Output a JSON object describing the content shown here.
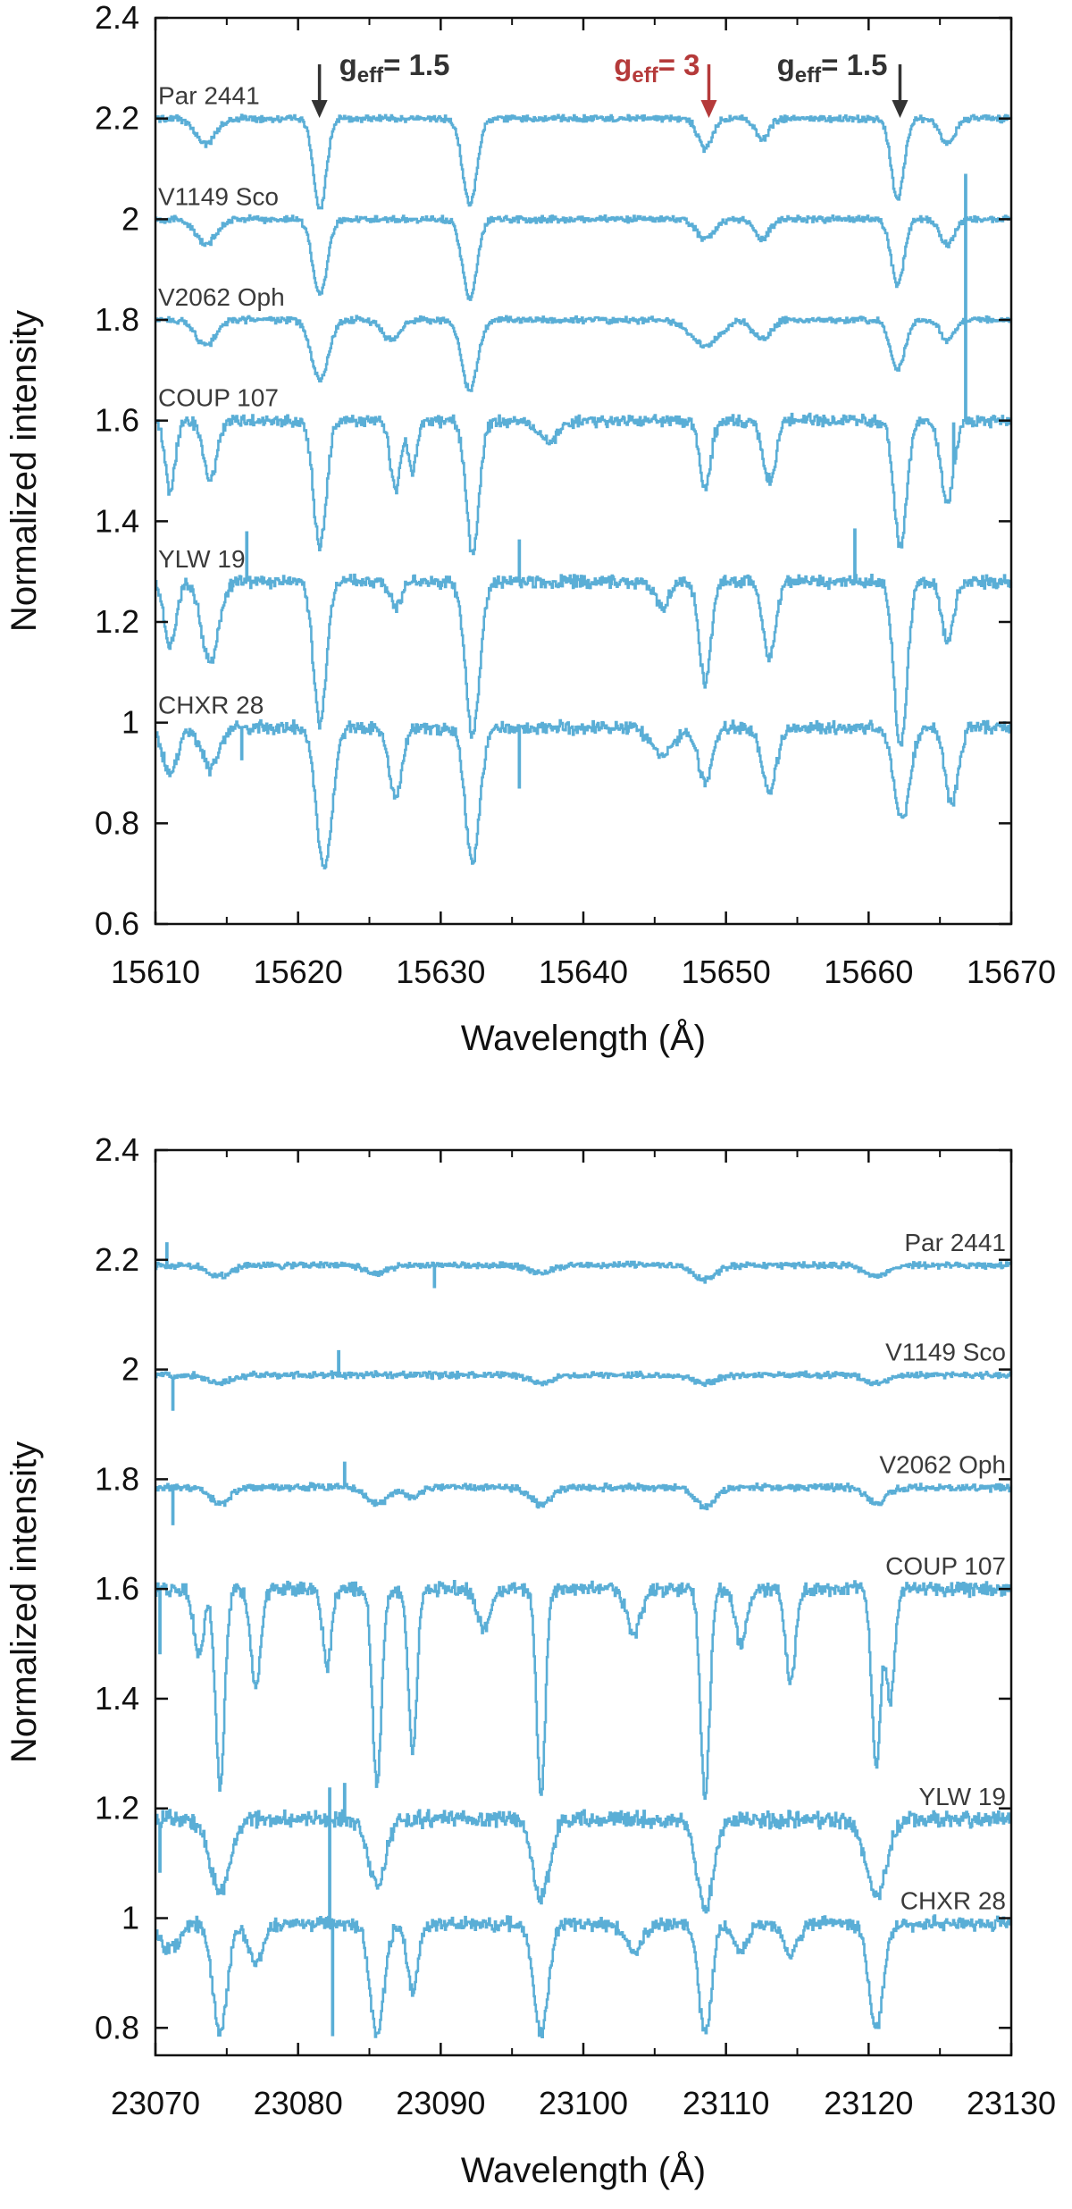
{
  "colors": {
    "spectrum": "#5aaed6",
    "axis": "#111111",
    "annotation_dark": "#333333",
    "annotation_red": "#b53a3a",
    "label": "#3a3a3a"
  },
  "chart_data": [
    {
      "type": "line",
      "xlabel": "Wavelength (Å)",
      "ylabel": "Normalized intensity",
      "xlim": [
        15610,
        15670
      ],
      "ylim": [
        0.6,
        2.4
      ],
      "xticks": [
        "15610",
        "15620",
        "15630",
        "15640",
        "15650",
        "15660",
        "15670"
      ],
      "yticks": [
        "0.6",
        "0.8",
        "1",
        "1.2",
        "1.4",
        "1.6",
        "1.8",
        "2",
        "2.2",
        "2.4"
      ],
      "series_labels_side": "left",
      "series": [
        {
          "name": "Par 2441",
          "baseline": 2.2,
          "noise": 0.008,
          "lines": [
            [
              15613.5,
              0.05,
              0.7
            ],
            [
              15621.5,
              0.18,
              0.45
            ],
            [
              15632,
              0.17,
              0.5
            ],
            [
              15648.5,
              0.06,
              0.5
            ],
            [
              15652.5,
              0.04,
              0.5
            ],
            [
              15662,
              0.16,
              0.45
            ],
            [
              15665.5,
              0.05,
              0.5
            ]
          ]
        },
        {
          "name": "V1149 Sco",
          "baseline": 2.0,
          "noise": 0.008,
          "lines": [
            [
              15613.5,
              0.05,
              0.7
            ],
            [
              15621.5,
              0.15,
              0.5
            ],
            [
              15632,
              0.16,
              0.5
            ],
            [
              15648.5,
              0.04,
              0.6
            ],
            [
              15652.5,
              0.04,
              0.5
            ],
            [
              15662,
              0.13,
              0.45
            ],
            [
              15665.5,
              0.05,
              0.5
            ]
          ]
        },
        {
          "name": "V2062 Oph",
          "baseline": 1.8,
          "noise": 0.008,
          "lines": [
            [
              15613.5,
              0.05,
              0.7
            ],
            [
              15621.5,
              0.12,
              0.6
            ],
            [
              15626.5,
              0.04,
              0.6
            ],
            [
              15632,
              0.14,
              0.55
            ],
            [
              15648.5,
              0.05,
              1.0
            ],
            [
              15652.5,
              0.04,
              0.6
            ],
            [
              15662,
              0.1,
              0.5
            ],
            [
              15665.5,
              0.04,
              0.5
            ]
          ]
        },
        {
          "name": "COUP 107",
          "baseline": 1.6,
          "noise": 0.015,
          "lines": [
            [
              15611,
              0.14,
              0.35
            ],
            [
              15613.8,
              0.12,
              0.45
            ],
            [
              15621.5,
              0.25,
              0.45
            ],
            [
              15626.8,
              0.14,
              0.35
            ],
            [
              15628,
              0.1,
              0.3
            ],
            [
              15632.2,
              0.26,
              0.45
            ],
            [
              15637.5,
              0.04,
              0.8
            ],
            [
              15648.5,
              0.13,
              0.4
            ],
            [
              15653,
              0.12,
              0.45
            ],
            [
              15662.2,
              0.25,
              0.45
            ],
            [
              15665.5,
              0.16,
              0.45
            ]
          ],
          "spikes": [
            [
              15665.9,
              0.1
            ],
            [
              15666.8,
              0.5
            ]
          ]
        },
        {
          "name": "YLW 19",
          "baseline": 1.28,
          "noise": 0.015,
          "lines": [
            [
              15611,
              0.13,
              0.4
            ],
            [
              15613.8,
              0.16,
              0.6
            ],
            [
              15621.5,
              0.28,
              0.45
            ],
            [
              15626.8,
              0.05,
              0.4
            ],
            [
              15632.2,
              0.3,
              0.5
            ],
            [
              15645.5,
              0.05,
              0.5
            ],
            [
              15648.5,
              0.2,
              0.4
            ],
            [
              15653,
              0.15,
              0.45
            ],
            [
              15662.2,
              0.33,
              0.45
            ],
            [
              15665.5,
              0.12,
              0.4
            ]
          ],
          "spikes": [
            [
              15616.4,
              0.1
            ],
            [
              15635.5,
              0.08
            ],
            [
              15659,
              0.1
            ]
          ]
        },
        {
          "name": "CHXR 28",
          "baseline": 0.99,
          "noise": 0.015,
          "lines": [
            [
              15611,
              0.09,
              0.5
            ],
            [
              15613.8,
              0.08,
              0.6
            ],
            [
              15621.8,
              0.28,
              0.55
            ],
            [
              15626.8,
              0.14,
              0.45
            ],
            [
              15632.2,
              0.27,
              0.5
            ],
            [
              15645.5,
              0.05,
              0.8
            ],
            [
              15648.5,
              0.11,
              0.5
            ],
            [
              15653,
              0.13,
              0.5
            ],
            [
              15662.3,
              0.18,
              0.55
            ],
            [
              15665.8,
              0.15,
              0.45
            ]
          ],
          "spikes": [
            [
              15635.5,
              -0.12
            ],
            [
              15616,
              -0.06
            ]
          ]
        }
      ],
      "annotations": [
        {
          "x": 15621.5,
          "main": "g",
          "sub": "eff",
          "rest": "= 1.5",
          "color": "#333333"
        },
        {
          "x": 15648.8,
          "main": "g",
          "sub": "eff",
          "rest": "= 3",
          "color": "#b53a3a"
        },
        {
          "x": 15662.2,
          "main": "g",
          "sub": "eff",
          "rest": "= 1.5",
          "color": "#333333"
        }
      ]
    },
    {
      "type": "line",
      "xlabel": "Wavelength (Å)",
      "ylabel": "Normalized intensity",
      "xlim": [
        23070,
        23130
      ],
      "ylim": [
        0.75,
        2.4
      ],
      "xticks": [
        "23070",
        "23080",
        "23090",
        "23100",
        "23110",
        "23120",
        "23130"
      ],
      "yticks": [
        "0.8",
        "1",
        "1.2",
        "1.4",
        "1.6",
        "1.8",
        "2",
        "2.2",
        "2.4"
      ],
      "series_labels_side": "right",
      "series": [
        {
          "name": "Par 2441",
          "baseline": 2.19,
          "noise": 0.007,
          "lines": [
            [
              23074.5,
              0.02,
              0.8
            ],
            [
              23085.5,
              0.015,
              0.8
            ],
            [
              23097,
              0.015,
              0.8
            ],
            [
              23108.5,
              0.025,
              0.8
            ],
            [
              23120.5,
              0.02,
              0.8
            ]
          ],
          "spikes": [
            [
              23070.8,
              0.04
            ],
            [
              23089.5,
              -0.04
            ]
          ]
        },
        {
          "name": "V1149 Sco",
          "baseline": 1.99,
          "noise": 0.007,
          "lines": [
            [
              23074.5,
              0.015,
              0.8
            ],
            [
              23097,
              0.015,
              0.8
            ],
            [
              23108.5,
              0.015,
              0.8
            ],
            [
              23120.5,
              0.015,
              0.8
            ]
          ],
          "spikes": [
            [
              23071.2,
              -0.06
            ],
            [
              23082.8,
              0.04
            ]
          ]
        },
        {
          "name": "V2062 Oph",
          "baseline": 1.785,
          "noise": 0.008,
          "lines": [
            [
              23074.5,
              0.03,
              0.7
            ],
            [
              23085.5,
              0.03,
              0.7
            ],
            [
              23088,
              0.02,
              0.5
            ],
            [
              23097,
              0.03,
              0.7
            ],
            [
              23108.5,
              0.035,
              0.7
            ],
            [
              23120.5,
              0.03,
              0.7
            ]
          ],
          "spikes": [
            [
              23071.2,
              -0.07
            ],
            [
              23083.2,
              0.05
            ]
          ]
        },
        {
          "name": "COUP 107",
          "baseline": 1.6,
          "noise": 0.015,
          "lines": [
            [
              23073,
              0.12,
              0.35
            ],
            [
              23074.5,
              0.36,
              0.32
            ],
            [
              23077,
              0.18,
              0.35
            ],
            [
              23082,
              0.14,
              0.3
            ],
            [
              23085.5,
              0.36,
              0.32
            ],
            [
              23088,
              0.3,
              0.3
            ],
            [
              23093,
              0.07,
              0.5
            ],
            [
              23097,
              0.38,
              0.3
            ],
            [
              23103.5,
              0.08,
              0.5
            ],
            [
              23108.5,
              0.38,
              0.32
            ],
            [
              23111,
              0.1,
              0.4
            ],
            [
              23114.5,
              0.17,
              0.35
            ],
            [
              23120.5,
              0.32,
              0.32
            ],
            [
              23121.5,
              0.2,
              0.3
            ]
          ],
          "spikes": [
            [
              23070.3,
              -0.12
            ]
          ]
        },
        {
          "name": "YLW 19",
          "baseline": 1.18,
          "noise": 0.018,
          "lines": [
            [
              23074.5,
              0.13,
              0.7
            ],
            [
              23085.5,
              0.12,
              0.6
            ],
            [
              23097,
              0.14,
              0.6
            ],
            [
              23108.5,
              0.16,
              0.6
            ],
            [
              23120.5,
              0.14,
              0.7
            ]
          ],
          "spikes": [
            [
              23083.2,
              0.06
            ],
            [
              23070.3,
              -0.08
            ]
          ]
        },
        {
          "name": "CHXR 28",
          "baseline": 0.99,
          "noise": 0.015,
          "lines": [
            [
              23071,
              0.05,
              0.6
            ],
            [
              23074.5,
              0.2,
              0.5
            ],
            [
              23077,
              0.07,
              0.5
            ],
            [
              23085.5,
              0.2,
              0.5
            ],
            [
              23088,
              0.12,
              0.4
            ],
            [
              23097,
              0.2,
              0.5
            ],
            [
              23103.5,
              0.05,
              0.6
            ],
            [
              23108.5,
              0.2,
              0.45
            ],
            [
              23111,
              0.05,
              0.5
            ],
            [
              23114.5,
              0.06,
              0.5
            ],
            [
              23120.5,
              0.19,
              0.5
            ]
          ],
          "spikes": [
            [
              23082.2,
              0.25
            ],
            [
              23082.4,
              -0.2
            ]
          ]
        }
      ]
    }
  ]
}
